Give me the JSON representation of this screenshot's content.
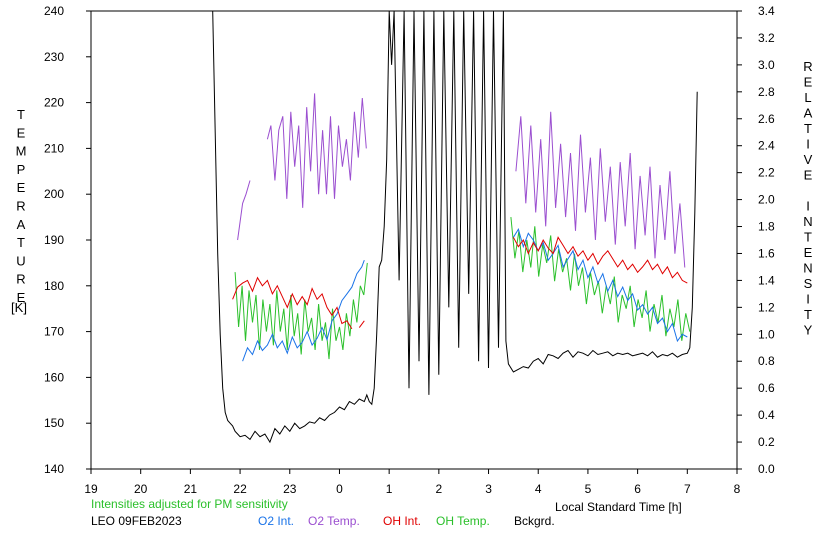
{
  "chart_data": {
    "type": "line",
    "ylabel_left_letters": [
      "T",
      "E",
      "M",
      "P",
      "E",
      "R",
      "A",
      "T",
      "U",
      "R",
      "E"
    ],
    "ylabel_left_unit": "[K]",
    "ylabel_right_letters": [
      "R",
      "E",
      "L",
      "A",
      "T",
      "I",
      "V",
      "E",
      "",
      "I",
      "N",
      "T",
      "E",
      "N",
      "S",
      "I",
      "T",
      "Y"
    ],
    "xlabel": "Local Standard Time [h]",
    "note": "Intensities adjusted for PM sensitivity",
    "station_date": "LEO 09FEB2023",
    "xlim": [
      19,
      32
    ],
    "ylim_left": [
      140,
      240
    ],
    "ylim_right": [
      0,
      3.4
    ],
    "x_ticks": [
      19,
      20,
      21,
      22,
      23,
      24,
      25,
      26,
      27,
      28,
      29,
      30,
      31,
      32
    ],
    "x_tick_labels": [
      "19",
      "20",
      "21",
      "22",
      "23",
      "0",
      "1",
      "2",
      "3",
      "4",
      "5",
      "6",
      "7",
      "8"
    ],
    "y_left_ticks": [
      140,
      150,
      160,
      170,
      180,
      190,
      200,
      210,
      220,
      230,
      240
    ],
    "y_left_tick_labels": [
      "140",
      "150",
      "160",
      "170",
      "180",
      "190",
      "200",
      "210",
      "220",
      "230",
      "240"
    ],
    "y_right_ticks": [
      0,
      0.2,
      0.4,
      0.6,
      0.8,
      1.0,
      1.2,
      1.4,
      1.6,
      1.8,
      2.0,
      2.2,
      2.4,
      2.6,
      2.8,
      3.0,
      3.2,
      3.4
    ],
    "y_right_tick_labels": [
      "0.0",
      "0.2",
      "0.4",
      "0.6",
      "0.8",
      "1.0",
      "1.2",
      "1.4",
      "1.6",
      "1.8",
      "2.0",
      "2.2",
      "2.4",
      "2.6",
      "2.8",
      "3.0",
      "3.2",
      "3.4"
    ],
    "legend": [
      {
        "label": "O2 Int.",
        "color": "#1a73e8"
      },
      {
        "label": "O2 Temp.",
        "color": "#9b4fd0"
      },
      {
        "label": "OH Int.",
        "color": "#e00000"
      },
      {
        "label": "OH Temp.",
        "color": "#2bc02b"
      },
      {
        "label": "Bckgrd.",
        "color": "#000000"
      }
    ],
    "series": [
      {
        "name": "O2 Temp.",
        "axis": "left",
        "color": "#9b4fd0",
        "segments": [
          {
            "x": [
              21.95,
              22.05,
              22.12,
              22.2
            ],
            "y": [
              190,
              198,
              200,
              203
            ]
          },
          {
            "x": [
              22.55,
              22.62,
              22.7,
              22.78,
              22.86,
              22.94,
              23.02,
              23.1,
              23.18,
              23.26,
              23.34,
              23.42,
              23.5,
              23.58,
              23.66,
              23.74,
              23.82,
              23.9,
              23.98,
              24.06,
              24.14,
              24.22,
              24.3,
              24.38,
              24.46,
              24.54
            ],
            "y": [
              212,
              215,
              203,
              214,
              217,
              199,
              218,
              206,
              215,
              197,
              219,
              205,
              222,
              200,
              214,
              200,
              217,
              199,
              215,
              206,
              212,
              203,
              218,
              208,
              221,
              210
            ]
          },
          {
            "x": [
              27.55,
              27.65,
              27.75,
              27.85,
              27.95,
              28.05,
              28.15,
              28.25,
              28.35,
              28.45,
              28.55,
              28.65,
              28.75,
              28.85,
              28.95,
              29.05,
              29.15,
              29.25,
              29.35,
              29.45,
              29.55,
              29.65,
              29.75,
              29.85,
              29.95,
              30.05,
              30.15,
              30.25,
              30.35,
              30.45,
              30.55,
              30.65,
              30.75,
              30.85,
              30.95
            ],
            "y": [
              205,
              217,
              198,
              215,
              196,
              212,
              193,
              218,
              197,
              211,
              195,
              209,
              192,
              213,
              196,
              208,
              190,
              210,
              194,
              206,
              189,
              207,
              193,
              209,
              188,
              204,
              191,
              206,
              186,
              202,
              190,
              205,
              187,
              198,
              184
            ]
          }
        ]
      },
      {
        "name": "O2 Int.",
        "axis": "right",
        "color": "#1a73e8",
        "segments": [
          {
            "x": [
              22.05,
              22.15,
              22.25,
              22.35,
              22.45,
              22.55,
              22.65,
              22.75,
              22.85,
              22.95,
              23.05,
              23.15,
              23.25,
              23.35,
              23.45,
              23.55,
              23.65,
              23.75,
              23.85,
              23.95,
              24.05,
              24.15,
              24.25,
              24.35,
              24.45,
              24.5
            ],
            "y": [
              0.8,
              0.9,
              0.85,
              0.95,
              0.88,
              0.92,
              1.0,
              0.9,
              0.95,
              0.86,
              0.98,
              0.9,
              0.94,
              1.02,
              0.92,
              0.97,
              1.05,
              0.96,
              1.1,
              1.15,
              1.25,
              1.3,
              1.35,
              1.45,
              1.5,
              1.55
            ]
          },
          {
            "x": [
              27.5,
              27.6,
              27.7,
              27.8,
              27.9,
              28.0,
              28.1,
              28.2,
              28.3,
              28.4,
              28.5,
              28.6,
              28.7,
              28.8,
              28.9,
              29.0,
              29.1,
              29.2,
              29.3,
              29.4,
              29.5,
              29.6,
              29.7,
              29.8,
              29.9,
              30.0,
              30.1,
              30.2,
              30.3,
              30.4,
              30.5,
              30.6,
              30.7,
              30.8,
              30.9,
              31.0
            ],
            "y": [
              1.72,
              1.78,
              1.65,
              1.75,
              1.7,
              1.62,
              1.68,
              1.55,
              1.6,
              1.66,
              1.5,
              1.56,
              1.62,
              1.48,
              1.55,
              1.42,
              1.5,
              1.38,
              1.45,
              1.32,
              1.4,
              1.28,
              1.35,
              1.25,
              1.3,
              1.18,
              1.22,
              1.15,
              1.2,
              1.08,
              1.12,
              1.02,
              1.08,
              0.95,
              1.0,
              0.98
            ]
          }
        ]
      },
      {
        "name": "OH Int.",
        "axis": "right",
        "color": "#e00000",
        "segments": [
          {
            "x": [
              21.85,
              21.95,
              22.05,
              22.15,
              22.25,
              22.35,
              22.45,
              22.55,
              22.65,
              22.75,
              22.85,
              22.95,
              23.05,
              23.15,
              23.25,
              23.35,
              23.45,
              23.55,
              23.65,
              23.75,
              23.85,
              23.95,
              24.05,
              24.15,
              24.25
            ],
            "y": [
              1.26,
              1.35,
              1.38,
              1.4,
              1.32,
              1.42,
              1.36,
              1.4,
              1.3,
              1.36,
              1.28,
              1.2,
              1.3,
              1.22,
              1.28,
              1.22,
              1.34,
              1.26,
              1.3,
              1.2,
              1.14,
              1.2,
              1.08,
              1.1,
              1.04
            ]
          },
          {
            "x": [
              24.4,
              24.5
            ],
            "y": [
              1.05,
              1.1
            ]
          },
          {
            "x": [
              27.5,
              27.6,
              27.7,
              27.8,
              27.9,
              28.0,
              28.1,
              28.2,
              28.3,
              28.4,
              28.5,
              28.6,
              28.7,
              28.8,
              28.9,
              29.0,
              29.1,
              29.2,
              29.3,
              29.4,
              29.5,
              29.6,
              29.7,
              29.8,
              29.9,
              30.0,
              30.1,
              30.2,
              30.3,
              30.4,
              30.5,
              30.6,
              30.7,
              30.8,
              30.9,
              31.0
            ],
            "y": [
              1.72,
              1.65,
              1.7,
              1.6,
              1.68,
              1.62,
              1.7,
              1.64,
              1.6,
              1.72,
              1.66,
              1.6,
              1.65,
              1.58,
              1.62,
              1.55,
              1.6,
              1.52,
              1.58,
              1.62,
              1.56,
              1.5,
              1.55,
              1.48,
              1.52,
              1.46,
              1.5,
              1.55,
              1.48,
              1.52,
              1.45,
              1.5,
              1.42,
              1.46,
              1.4,
              1.38
            ]
          }
        ]
      },
      {
        "name": "OH Temp.",
        "axis": "left",
        "color": "#2bc02b",
        "segments": [
          {
            "x": [
              21.9,
              21.97,
              22.04,
              22.11,
              22.18,
              22.25,
              22.32,
              22.39,
              22.46,
              22.53,
              22.6,
              22.67,
              22.74,
              22.81,
              22.88,
              22.95,
              23.02,
              23.09,
              23.16,
              23.23,
              23.3,
              23.37,
              23.44,
              23.51,
              23.58,
              23.65,
              23.72,
              23.79,
              23.86,
              23.93,
              24.0,
              24.07,
              24.14,
              24.21,
              24.28,
              24.35,
              24.42,
              24.49,
              24.56
            ],
            "y": [
              183,
              171,
              180,
              168,
              179,
              172,
              178,
              166,
              177,
              170,
              176,
              167,
              179,
              170,
              175,
              166,
              178,
              169,
              174,
              165,
              177,
              170,
              173,
              166,
              176,
              168,
              172,
              164,
              175,
              168,
              171,
              166,
              174,
              169,
              177,
              172,
              180,
              178,
              185
            ]
          },
          {
            "x": [
              27.45,
              27.53,
              27.61,
              27.69,
              27.77,
              27.85,
              27.93,
              28.01,
              28.09,
              28.17,
              28.25,
              28.33,
              28.41,
              28.49,
              28.57,
              28.65,
              28.73,
              28.81,
              28.89,
              28.97,
              29.05,
              29.13,
              29.21,
              29.29,
              29.37,
              29.45,
              29.53,
              29.61,
              29.69,
              29.77,
              29.85,
              29.93,
              30.01,
              30.09,
              30.17,
              30.25,
              30.33,
              30.41,
              30.49,
              30.57,
              30.65,
              30.73,
              30.81,
              30.89,
              30.97,
              31.05
            ],
            "y": [
              195,
              186,
              192,
              183,
              190,
              184,
              193,
              182,
              189,
              185,
              191,
              181,
              188,
              183,
              186,
              179,
              187,
              180,
              184,
              176,
              183,
              178,
              181,
              174,
              180,
              176,
              182,
              172,
              178,
              175,
              180,
              171,
              177,
              173,
              179,
              170,
              176,
              172,
              178,
              169,
              175,
              171,
              177,
              168,
              174,
              170
            ]
          }
        ]
      },
      {
        "name": "Bckgrd.",
        "axis": "right",
        "color": "#000000",
        "segments": [
          {
            "x": [
              21.45,
              21.5,
              21.55,
              21.6,
              21.65,
              21.7,
              21.75,
              21.8,
              21.85,
              21.9,
              21.95,
              22.0,
              22.1,
              22.2,
              22.3,
              22.4,
              22.5,
              22.6,
              22.7,
              22.8,
              22.9,
              23.0,
              23.1,
              23.2,
              23.3,
              23.4,
              23.5,
              23.6,
              23.7,
              23.8,
              23.9,
              24.0,
              24.1,
              24.2,
              24.3,
              24.4,
              24.5,
              24.55,
              24.6,
              24.65,
              24.7,
              24.75,
              24.8,
              24.85,
              24.9,
              24.95,
              25.0,
              25.05,
              25.1,
              25.2,
              25.3,
              25.4,
              25.5,
              25.6,
              25.7,
              25.8,
              25.9,
              26.0,
              26.1,
              26.2,
              26.3,
              26.4,
              26.5,
              26.6,
              26.7,
              26.8,
              26.9,
              27.0,
              27.1,
              27.2,
              27.3,
              27.35,
              27.4,
              27.5,
              27.6,
              27.7,
              27.8,
              27.9,
              28.0,
              28.1,
              28.2,
              28.3,
              28.4,
              28.5,
              28.6,
              28.7,
              28.8,
              28.9,
              29.0,
              29.1,
              29.2,
              29.3,
              29.4,
              29.5,
              29.6,
              29.7,
              29.8,
              29.9,
              30.0,
              30.1,
              30.2,
              30.3,
              30.4,
              30.5,
              30.6,
              30.7,
              30.8,
              30.9,
              31.0,
              31.05,
              31.1,
              31.15,
              31.2
            ],
            "y": [
              3.4,
              2.5,
              1.6,
              1.0,
              0.6,
              0.42,
              0.36,
              0.34,
              0.32,
              0.28,
              0.26,
              0.24,
              0.25,
              0.22,
              0.28,
              0.24,
              0.26,
              0.2,
              0.3,
              0.26,
              0.32,
              0.28,
              0.34,
              0.3,
              0.32,
              0.35,
              0.34,
              0.38,
              0.36,
              0.4,
              0.42,
              0.46,
              0.44,
              0.5,
              0.48,
              0.52,
              0.5,
              0.55,
              0.5,
              0.48,
              0.6,
              1.0,
              1.5,
              1.55,
              1.8,
              2.3,
              3.4,
              3.0,
              3.4,
              1.4,
              3.4,
              0.6,
              3.4,
              0.8,
              3.4,
              0.55,
              3.4,
              0.7,
              3.4,
              1.2,
              3.4,
              0.9,
              3.4,
              1.3,
              3.4,
              0.8,
              3.4,
              0.75,
              3.4,
              0.9,
              3.4,
              0.95,
              0.78,
              0.72,
              0.74,
              0.76,
              0.75,
              0.8,
              0.82,
              0.78,
              0.85,
              0.84,
              0.82,
              0.86,
              0.88,
              0.83,
              0.87,
              0.86,
              0.84,
              0.88,
              0.85,
              0.86,
              0.87,
              0.84,
              0.86,
              0.85,
              0.86,
              0.84,
              0.85,
              0.86,
              0.84,
              0.87,
              0.83,
              0.85,
              0.84,
              0.86,
              0.83,
              0.85,
              0.86,
              0.9,
              1.2,
              1.9,
              2.8
            ]
          }
        ]
      }
    ]
  }
}
